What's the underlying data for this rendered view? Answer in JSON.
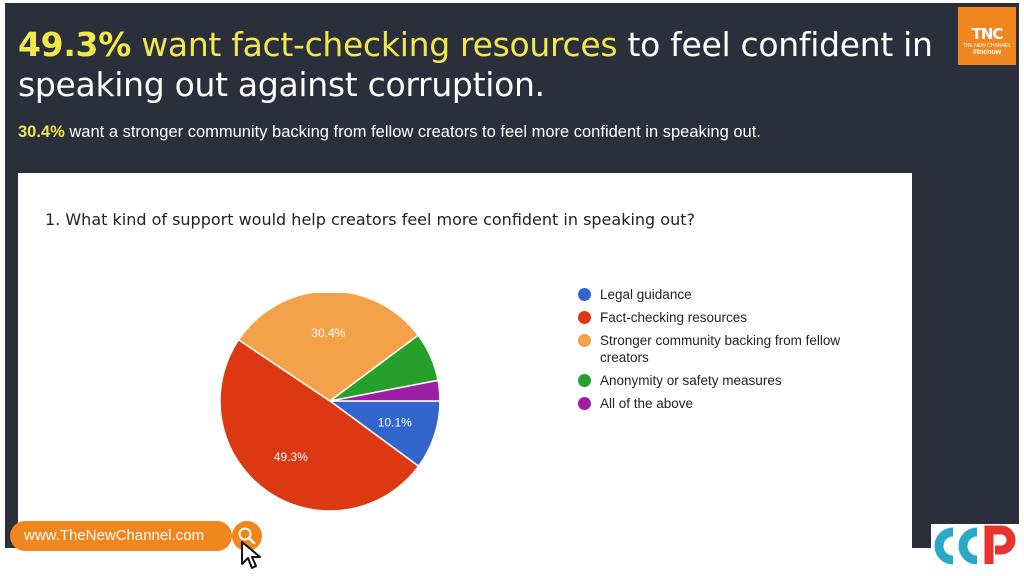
{
  "headline": {
    "pct": "49.3%",
    "highlight": "want fact-checking resources",
    "rest": "to feel confident in speaking out against corruption."
  },
  "subline": {
    "pct": "30.4%",
    "rest": "want a stronger community backing from fellow creators to feel more confident in speaking out."
  },
  "logo": {
    "text": "TNC",
    "small": "THE NEW CHANNEL",
    "tag": "#tncnow"
  },
  "footer": {
    "url": "www.TheNewChannel.com",
    "search_icon": "search-icon",
    "cursor_icon": "cursor-icon",
    "badge_icon": "ccp-logo"
  },
  "colors": {
    "background": "#2a2f3b",
    "accent_yellow": "#f1e94a",
    "accent_orange": "#f0861e"
  },
  "chart_data": {
    "type": "pie",
    "title": "1. What kind of support would help creators feel more confident in speaking out?",
    "legend_position": "right",
    "slices": [
      {
        "name": "Legal guidance",
        "value": 10.1,
        "label": "10.1%",
        "color": "#3366cc"
      },
      {
        "name": "Fact-checking resources",
        "value": 49.3,
        "label": "49.3%",
        "color": "#dc3912"
      },
      {
        "name": "Stronger community backing from fellow creators",
        "value": 30.4,
        "label": "30.4%",
        "color": "#f4a24a"
      },
      {
        "name": "Anonymity or safety measures",
        "value": 7.2,
        "label": "",
        "color": "#27a02b"
      },
      {
        "name": "All of the above",
        "value": 3.0,
        "label": "",
        "color": "#9b1ea5"
      }
    ]
  }
}
